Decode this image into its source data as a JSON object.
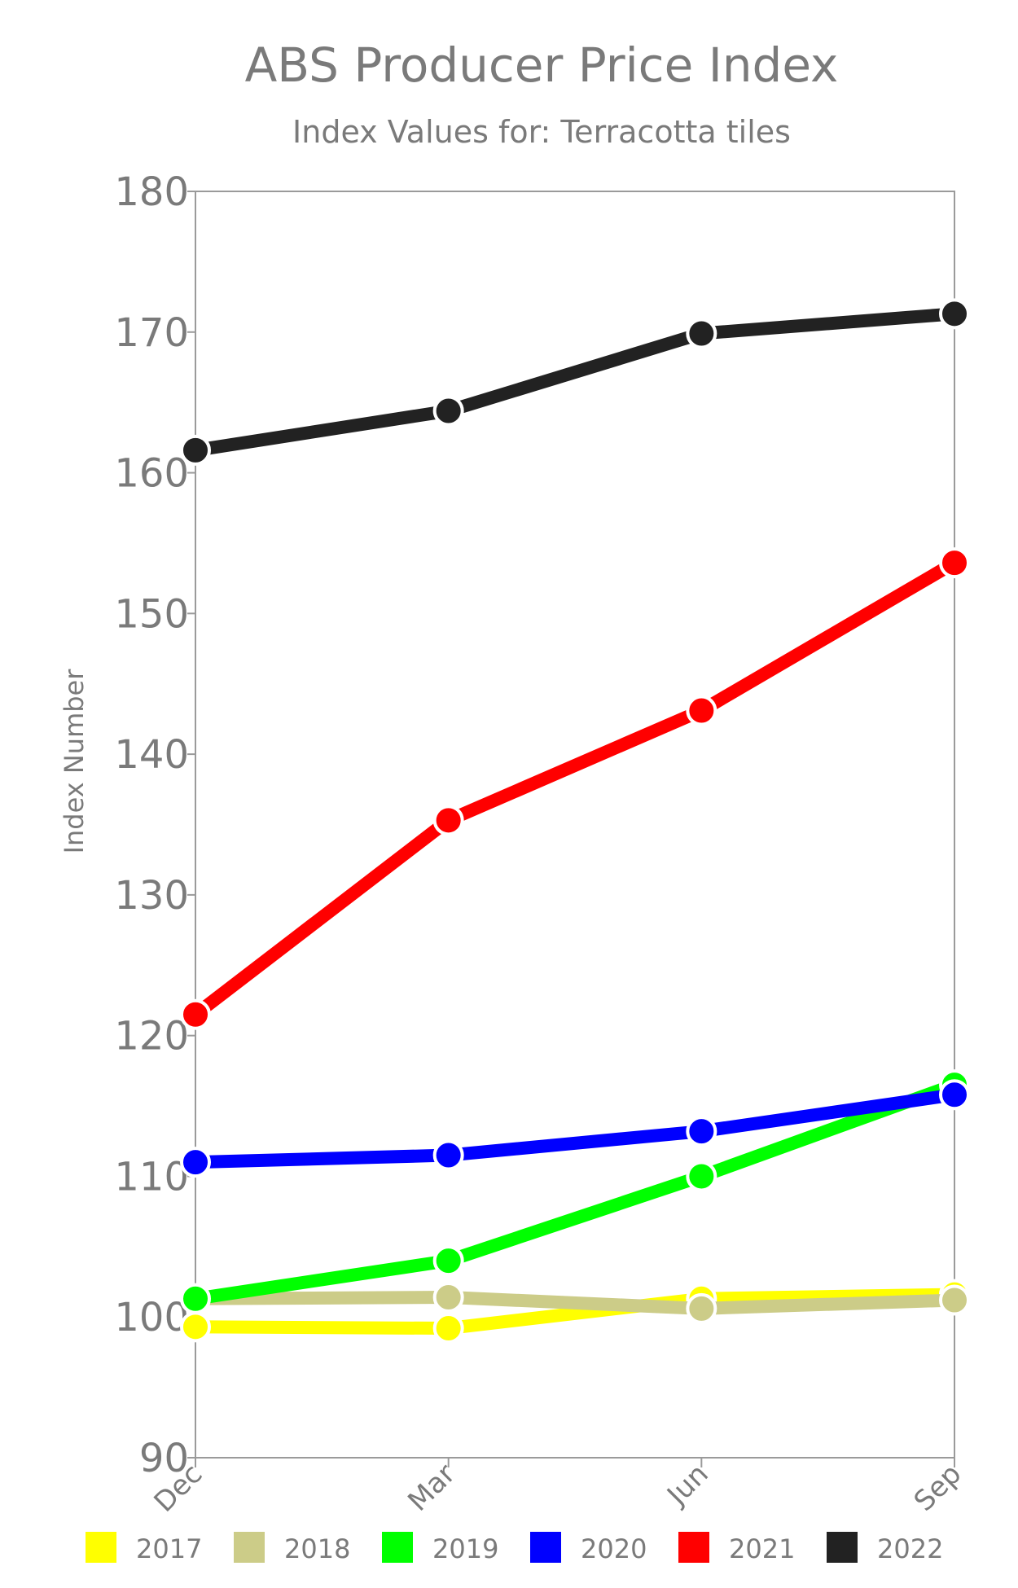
{
  "chart_data": {
    "type": "line",
    "title": "ABS Producer Price Index",
    "subtitle": "Index Values for: Terracotta tiles",
    "xlabel": "",
    "ylabel": "Index Number",
    "categories": [
      "Dec",
      "Mar",
      "Jun",
      "Sep"
    ],
    "ylim": [
      90,
      180
    ],
    "yticks": [
      90,
      100,
      110,
      120,
      130,
      140,
      150,
      160,
      170,
      180
    ],
    "grid": false,
    "legend_position": "bottom",
    "series": [
      {
        "name": "2017",
        "color": "#ffff00",
        "values": [
          99.3,
          99.2,
          101.3,
          101.6
        ]
      },
      {
        "name": "2018",
        "color": "#cccc88",
        "values": [
          101.3,
          101.4,
          100.6,
          101.2
        ]
      },
      {
        "name": "2019",
        "color": "#00ff00",
        "values": [
          101.3,
          104.0,
          110.0,
          116.5
        ]
      },
      {
        "name": "2020",
        "color": "#0000ff",
        "values": [
          111.0,
          111.5,
          113.2,
          115.8
        ]
      },
      {
        "name": "2021",
        "color": "#ff0000",
        "values": [
          121.5,
          135.3,
          143.1,
          153.6
        ]
      },
      {
        "name": "2022",
        "color": "#222222",
        "values": [
          161.6,
          164.4,
          169.9,
          171.3
        ]
      }
    ]
  }
}
